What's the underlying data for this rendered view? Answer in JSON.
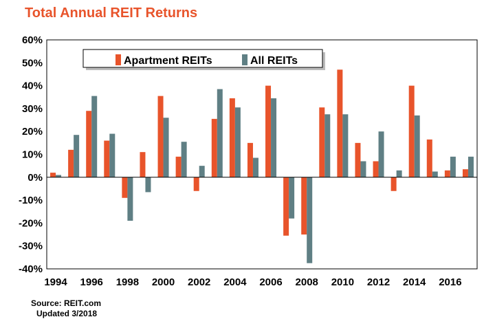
{
  "chart_data": {
    "type": "bar",
    "title": "Total Annual REIT Returns",
    "categories": [
      "1994",
      "1995",
      "1996",
      "1997",
      "1998",
      "1999",
      "2000",
      "2001",
      "2002",
      "2003",
      "2004",
      "2005",
      "2006",
      "2007",
      "2008",
      "2009",
      "2010",
      "2011",
      "2012",
      "2013",
      "2014",
      "2015",
      "2016",
      "2017"
    ],
    "x_tick_labels": [
      "1994",
      "1996",
      "1998",
      "2000",
      "2002",
      "2004",
      "2006",
      "2008",
      "2010",
      "2012",
      "2014",
      "2016"
    ],
    "y_tick_labels": [
      "60%",
      "50%",
      "40%",
      "30%",
      "20%",
      "10%",
      "0%",
      "-10%",
      "-20%",
      "-30%",
      "-40%"
    ],
    "ylim": [
      -40,
      60
    ],
    "ytick_step": 10,
    "series": [
      {
        "name": "Apartment REITs",
        "color": "#e8542b",
        "values": [
          2,
          12,
          29,
          16,
          -9,
          11,
          35.5,
          9,
          -6,
          25.5,
          34.5,
          15,
          40,
          -25.5,
          -25,
          30.5,
          47,
          15,
          7,
          -6,
          40,
          16.5,
          3,
          3.5
        ]
      },
      {
        "name": "All REITs",
        "color": "#5f7f84",
        "values": [
          1,
          18.5,
          35.5,
          19,
          -19,
          -6.5,
          26,
          15.5,
          5,
          38.5,
          30.5,
          8.5,
          34.5,
          -18,
          -37.5,
          27.5,
          27.5,
          7,
          20,
          3,
          27,
          2.5,
          9,
          9
        ]
      }
    ],
    "legend_position": "top-left",
    "grid": false
  },
  "source": {
    "line1": "Source: REIT.com",
    "line2": "Updated 3/2018"
  }
}
